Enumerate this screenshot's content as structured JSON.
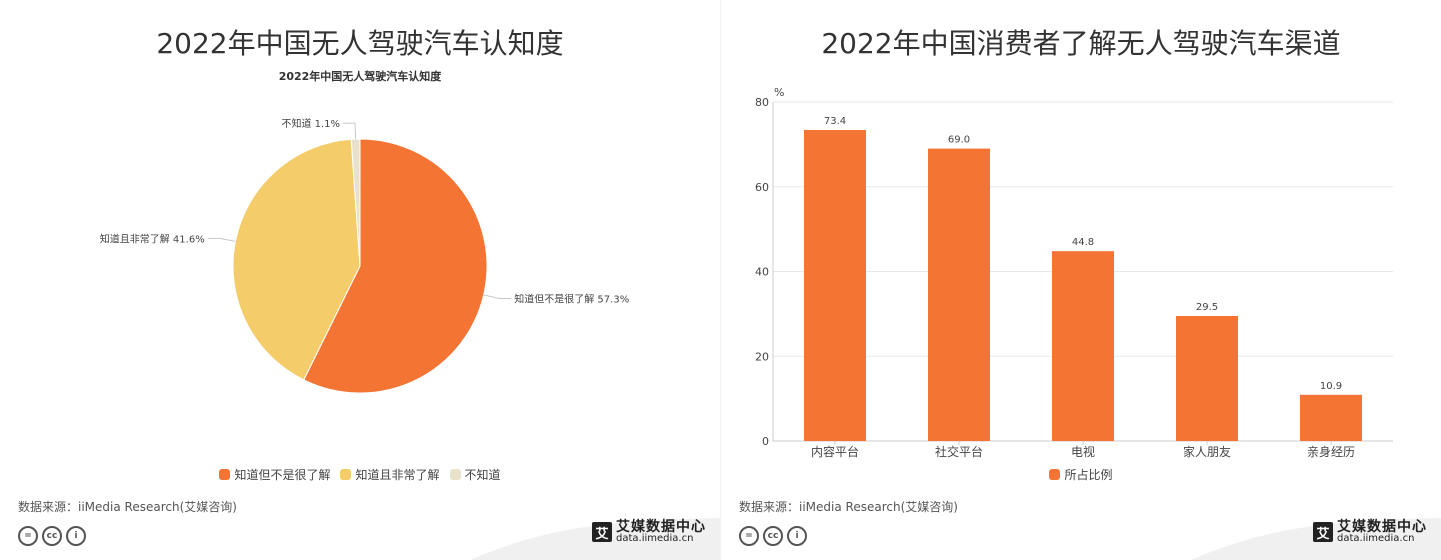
{
  "colors": {
    "orange": "#f47533",
    "yellow": "#f4cd6a",
    "cream": "#e8e2cc",
    "grid": "#e8e8e8",
    "footer": "#f0f0f0"
  },
  "source_text": "数据来源：iiMedia Research(艾媒咨询)",
  "brand": {
    "name": "艾媒数据中心",
    "url": "data.iimedia.cn",
    "badge": "艾"
  },
  "cc_icons": [
    "equals-icon",
    "cc-icon",
    "person-icon"
  ],
  "left": {
    "title": "2022年中国无人驾驶汽车认知度",
    "chart_data": {
      "type": "pie",
      "title": "2022年中国无人驾驶汽车认知度",
      "slices": [
        {
          "label": "知道但不是很了解",
          "value": 57.3,
          "display": "知道但不是很了解 57.3%",
          "color": "#f47533"
        },
        {
          "label": "知道且非常了解",
          "value": 41.6,
          "display": "知道且非常了解 41.6%",
          "color": "#f4cd6a"
        },
        {
          "label": "不知道",
          "value": 1.1,
          "display": "不知道 1.1%",
          "color": "#e8e2cc"
        }
      ],
      "legend_position": "bottom"
    }
  },
  "right": {
    "title": "2022年中国消费者了解无人驾驶汽车渠道",
    "chart_data": {
      "type": "bar",
      "categories": [
        "内容平台",
        "社交平台",
        "电视",
        "家人朋友",
        "亲身经历"
      ],
      "series": [
        {
          "name": "所占比例",
          "values": [
            73.4,
            69.0,
            44.8,
            29.5,
            10.9
          ],
          "labels": [
            "73.4",
            "69.0",
            "44.8",
            "29.5",
            "10.9"
          ],
          "color": "#f47533"
        }
      ],
      "ylabel": "%",
      "ylim": [
        0,
        80
      ],
      "yticks": [
        "0",
        "20",
        "40",
        "60",
        "80"
      ],
      "grid": true,
      "legend_position": "bottom"
    }
  }
}
